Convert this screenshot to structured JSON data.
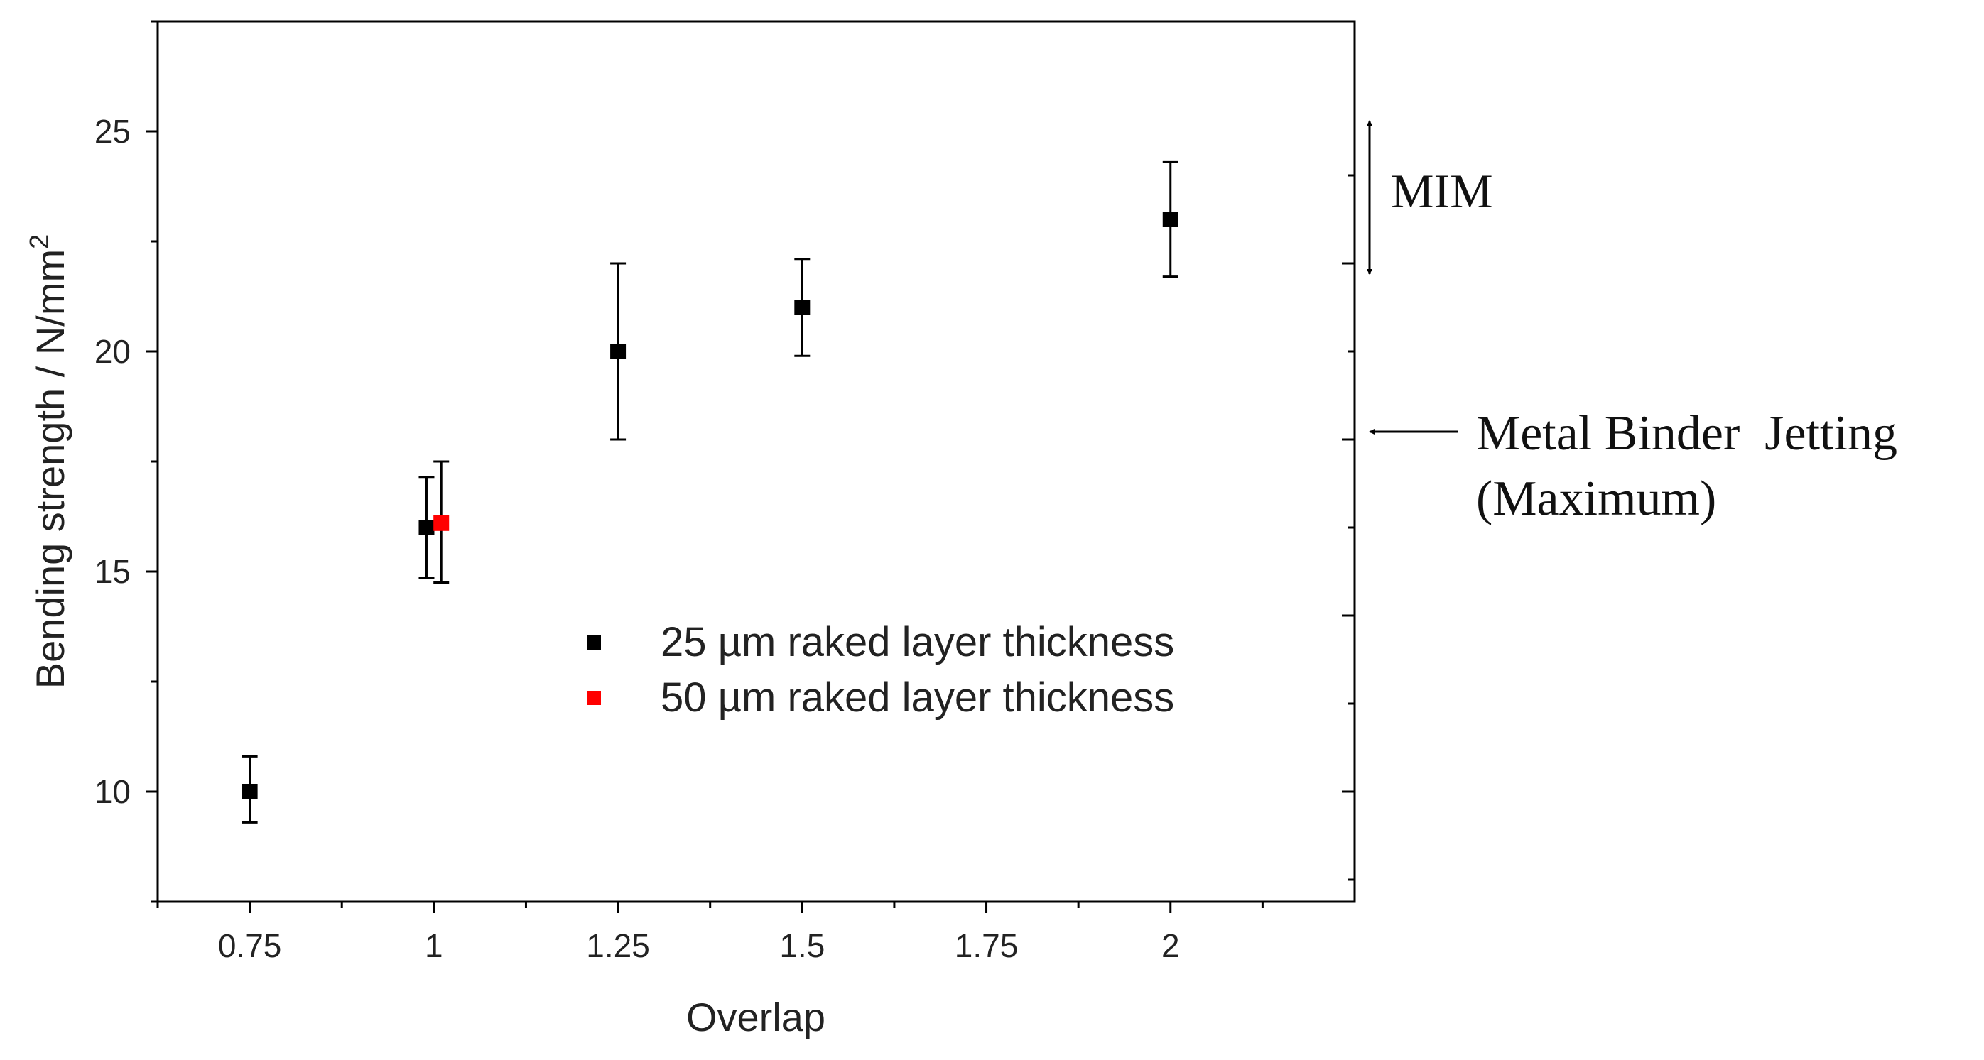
{
  "chart_data": {
    "type": "scatter",
    "title": "",
    "xlabel": "Overlap",
    "ylabel": "Bending strength / N/mm",
    "ylabel_superscript": "2",
    "xlim": [
      0.625,
      2.25
    ],
    "ylim": [
      7.5,
      27.5
    ],
    "x_ticks": [
      0.75,
      1,
      1.25,
      1.5,
      1.75,
      2
    ],
    "x_tick_labels": [
      "0.75",
      "1",
      "1.25",
      "1.5",
      "1.75",
      "2"
    ],
    "x_minor_ticks": [
      0.625,
      0.875,
      1.125,
      1.375,
      1.625,
      1.875,
      2.125
    ],
    "y_ticks": [
      10,
      15,
      20,
      25
    ],
    "y_tick_labels": [
      "10",
      "15",
      "20",
      "25"
    ],
    "y_minor_ticks": [
      7.5,
      12.5,
      17.5,
      22.5,
      27.5
    ],
    "grid": false,
    "legend_position": "center",
    "series": [
      {
        "name": "25 µm raked layer thickness",
        "color": "#000000",
        "points": [
          {
            "x": 0.75,
            "y": 10.0,
            "err_low": 9.3,
            "err_high": 10.8
          },
          {
            "x": 0.99,
            "y": 16.0,
            "err_low": 14.85,
            "err_high": 17.15
          },
          {
            "x": 1.25,
            "y": 20.0,
            "err_low": 18.0,
            "err_high": 22.0
          },
          {
            "x": 1.5,
            "y": 21.0,
            "err_low": 19.9,
            "err_high": 22.1
          },
          {
            "x": 2.0,
            "y": 23.0,
            "err_low": 21.7,
            "err_high": 24.3
          }
        ]
      },
      {
        "name": "50 µm raked layer thickness",
        "color": "#ff0000",
        "points": [
          {
            "x": 1.01,
            "y": 16.1,
            "err_low": 14.75,
            "err_high": 17.5
          }
        ]
      }
    ],
    "right_axis": {
      "major_ticks": [
        22.0,
        18.0,
        14.0,
        10.0
      ],
      "minor_ticks": [
        24.0,
        20.0,
        16.0,
        12.0,
        8.0
      ]
    },
    "annotations": [
      {
        "text": "MIM",
        "y_from": 24.3,
        "y_to": 20.4,
        "type": "double-arrow"
      },
      {
        "lines": [
          "Metal Binder  Jetting",
          "(Maximum)"
        ],
        "y": 17.9,
        "type": "left-arrow"
      }
    ]
  }
}
